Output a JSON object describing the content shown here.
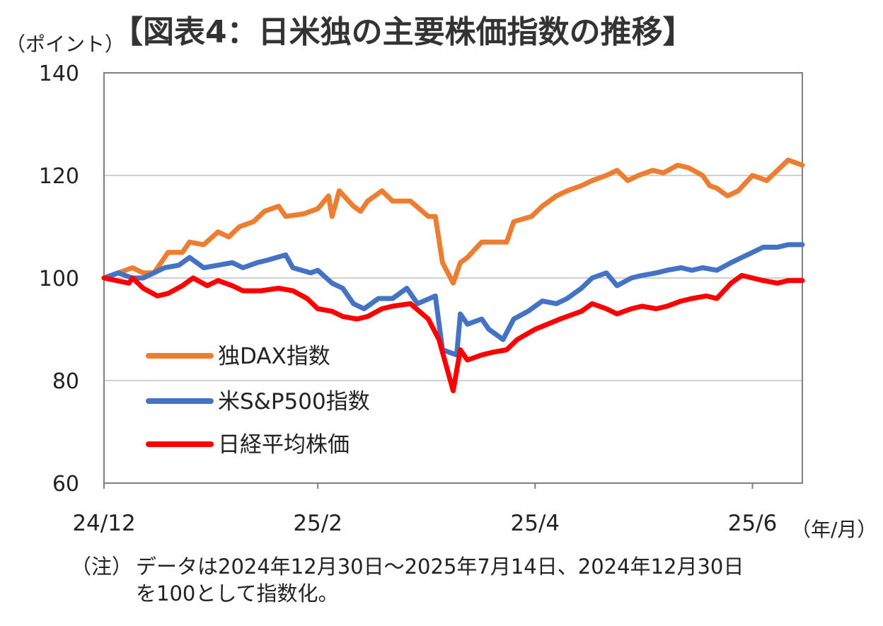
{
  "chart_data": {
    "type": "line",
    "title": "【図表4：日米独の主要株価指数の推移】",
    "ylabel": "（ポイント）",
    "xlabel": "（年/月）",
    "ylim": [
      60,
      140
    ],
    "y_ticks": [
      "140",
      "120",
      "100",
      "80",
      "60"
    ],
    "x_tick_labels": [
      "24/12",
      "25/2",
      "25/4",
      "25/6"
    ],
    "x_tick_dates": [
      "2024-12-30",
      "2025-02-28",
      "2025-04-30",
      "2025-06-30"
    ],
    "x_range": [
      "2024-12-30",
      "2025-07-14"
    ],
    "grid": true,
    "legend_position": "left",
    "series": [
      {
        "name": "独DAX指数",
        "color": "#ED7D31",
        "points": [
          [
            "2024-12-30",
            100
          ],
          [
            "2025-01-03",
            101
          ],
          [
            "2025-01-07",
            102
          ],
          [
            "2025-01-10",
            101
          ],
          [
            "2025-01-13",
            101
          ],
          [
            "2025-01-15",
            103
          ],
          [
            "2025-01-17",
            105
          ],
          [
            "2025-01-21",
            105
          ],
          [
            "2025-01-23",
            107
          ],
          [
            "2025-01-27",
            106.5
          ],
          [
            "2025-01-31",
            109
          ],
          [
            "2025-02-03",
            108
          ],
          [
            "2025-02-06",
            110
          ],
          [
            "2025-02-10",
            111
          ],
          [
            "2025-02-13",
            113
          ],
          [
            "2025-02-17",
            114
          ],
          [
            "2025-02-19",
            112
          ],
          [
            "2025-02-24",
            112.5
          ],
          [
            "2025-02-28",
            113.5
          ],
          [
            "2025-03-03",
            116
          ],
          [
            "2025-03-04",
            112
          ],
          [
            "2025-03-06",
            117
          ],
          [
            "2025-03-10",
            114
          ],
          [
            "2025-03-12",
            113
          ],
          [
            "2025-03-14",
            115
          ],
          [
            "2025-03-18",
            117
          ],
          [
            "2025-03-21",
            115
          ],
          [
            "2025-03-26",
            115
          ],
          [
            "2025-03-31",
            112
          ],
          [
            "2025-04-02",
            112
          ],
          [
            "2025-04-04",
            103
          ],
          [
            "2025-04-07",
            99
          ],
          [
            "2025-04-09",
            103
          ],
          [
            "2025-04-11",
            104
          ],
          [
            "2025-04-15",
            107
          ],
          [
            "2025-04-18",
            107
          ],
          [
            "2025-04-22",
            107
          ],
          [
            "2025-04-24",
            111
          ],
          [
            "2025-04-29",
            112
          ],
          [
            "2025-05-02",
            114
          ],
          [
            "2025-05-06",
            116
          ],
          [
            "2025-05-09",
            117
          ],
          [
            "2025-05-13",
            118
          ],
          [
            "2025-05-16",
            119
          ],
          [
            "2025-05-20",
            120
          ],
          [
            "2025-05-23",
            121
          ],
          [
            "2025-05-26",
            119
          ],
          [
            "2025-05-29",
            120
          ],
          [
            "2025-06-02",
            121
          ],
          [
            "2025-06-05",
            120.5
          ],
          [
            "2025-06-09",
            122
          ],
          [
            "2025-06-12",
            121.5
          ],
          [
            "2025-06-16",
            120
          ],
          [
            "2025-06-18",
            118
          ],
          [
            "2025-06-20",
            117.5
          ],
          [
            "2025-06-23",
            116
          ],
          [
            "2025-06-26",
            117
          ],
          [
            "2025-06-30",
            120
          ],
          [
            "2025-07-02",
            119.5
          ],
          [
            "2025-07-04",
            119
          ],
          [
            "2025-07-07",
            121
          ],
          [
            "2025-07-10",
            123
          ],
          [
            "2025-07-14",
            122
          ]
        ]
      },
      {
        "name": "米S&P500指数",
        "color": "#4472C4",
        "points": [
          [
            "2024-12-30",
            100
          ],
          [
            "2025-01-03",
            101
          ],
          [
            "2025-01-07",
            100
          ],
          [
            "2025-01-10",
            100
          ],
          [
            "2025-01-13",
            101
          ],
          [
            "2025-01-16",
            102
          ],
          [
            "2025-01-20",
            102.5
          ],
          [
            "2025-01-23",
            104
          ],
          [
            "2025-01-27",
            102
          ],
          [
            "2025-01-31",
            102.5
          ],
          [
            "2025-02-04",
            103
          ],
          [
            "2025-02-07",
            102
          ],
          [
            "2025-02-11",
            103
          ],
          [
            "2025-02-14",
            103.5
          ],
          [
            "2025-02-19",
            104.5
          ],
          [
            "2025-02-21",
            102
          ],
          [
            "2025-02-26",
            101
          ],
          [
            "2025-02-28",
            101.5
          ],
          [
            "2025-03-04",
            99
          ],
          [
            "2025-03-07",
            98
          ],
          [
            "2025-03-10",
            95
          ],
          [
            "2025-03-13",
            94
          ],
          [
            "2025-03-17",
            96
          ],
          [
            "2025-03-21",
            96
          ],
          [
            "2025-03-25",
            98
          ],
          [
            "2025-03-28",
            95
          ],
          [
            "2025-04-02",
            96.5
          ],
          [
            "2025-04-04",
            86
          ],
          [
            "2025-04-08",
            85
          ],
          [
            "2025-04-09",
            93
          ],
          [
            "2025-04-11",
            91
          ],
          [
            "2025-04-15",
            92
          ],
          [
            "2025-04-17",
            90
          ],
          [
            "2025-04-21",
            88
          ],
          [
            "2025-04-24",
            92
          ],
          [
            "2025-04-28",
            93.5
          ],
          [
            "2025-05-02",
            95.5
          ],
          [
            "2025-05-06",
            95
          ],
          [
            "2025-05-09",
            96
          ],
          [
            "2025-05-13",
            98
          ],
          [
            "2025-05-16",
            100
          ],
          [
            "2025-05-20",
            101
          ],
          [
            "2025-05-23",
            98.5
          ],
          [
            "2025-05-27",
            100
          ],
          [
            "2025-05-30",
            100.5
          ],
          [
            "2025-06-03",
            101
          ],
          [
            "2025-06-06",
            101.5
          ],
          [
            "2025-06-10",
            102
          ],
          [
            "2025-06-13",
            101.5
          ],
          [
            "2025-06-16",
            102
          ],
          [
            "2025-06-20",
            101.5
          ],
          [
            "2025-06-24",
            103
          ],
          [
            "2025-06-27",
            104
          ],
          [
            "2025-06-30",
            105
          ],
          [
            "2025-07-03",
            106
          ],
          [
            "2025-07-07",
            106
          ],
          [
            "2025-07-10",
            106.5
          ],
          [
            "2025-07-14",
            106.5
          ]
        ]
      },
      {
        "name": "日経平均株価",
        "color": "#FF0000",
        "points": [
          [
            "2024-12-30",
            100
          ],
          [
            "2025-01-06",
            99
          ],
          [
            "2025-01-07",
            100
          ],
          [
            "2025-01-10",
            98
          ],
          [
            "2025-01-14",
            96.5
          ],
          [
            "2025-01-17",
            97
          ],
          [
            "2025-01-21",
            98.5
          ],
          [
            "2025-01-24",
            100
          ],
          [
            "2025-01-28",
            98.5
          ],
          [
            "2025-01-31",
            99.5
          ],
          [
            "2025-02-04",
            98.5
          ],
          [
            "2025-02-07",
            97.5
          ],
          [
            "2025-02-12",
            97.5
          ],
          [
            "2025-02-17",
            98
          ],
          [
            "2025-02-21",
            97.5
          ],
          [
            "2025-02-25",
            96
          ],
          [
            "2025-02-28",
            94
          ],
          [
            "2025-03-04",
            93.5
          ],
          [
            "2025-03-07",
            92.5
          ],
          [
            "2025-03-11",
            92
          ],
          [
            "2025-03-14",
            92.5
          ],
          [
            "2025-03-18",
            94
          ],
          [
            "2025-03-21",
            94.5
          ],
          [
            "2025-03-26",
            95
          ],
          [
            "2025-03-31",
            92
          ],
          [
            "2025-04-03",
            88
          ],
          [
            "2025-04-07",
            78
          ],
          [
            "2025-04-09",
            86
          ],
          [
            "2025-04-11",
            84
          ],
          [
            "2025-04-15",
            85
          ],
          [
            "2025-04-18",
            85.5
          ],
          [
            "2025-04-22",
            86
          ],
          [
            "2025-04-25",
            88
          ],
          [
            "2025-04-30",
            90
          ],
          [
            "2025-05-07",
            92
          ],
          [
            "2025-05-13",
            93.5
          ],
          [
            "2025-05-16",
            95
          ],
          [
            "2025-05-20",
            94
          ],
          [
            "2025-05-23",
            93
          ],
          [
            "2025-05-27",
            94
          ],
          [
            "2025-05-30",
            94.5
          ],
          [
            "2025-06-03",
            94
          ],
          [
            "2025-06-06",
            94.5
          ],
          [
            "2025-06-10",
            95.5
          ],
          [
            "2025-06-13",
            96
          ],
          [
            "2025-06-17",
            96.5
          ],
          [
            "2025-06-20",
            96
          ],
          [
            "2025-06-24",
            99
          ],
          [
            "2025-06-27",
            100.5
          ],
          [
            "2025-06-30",
            100
          ],
          [
            "2025-07-03",
            99.5
          ],
          [
            "2025-07-07",
            99
          ],
          [
            "2025-07-10",
            99.5
          ],
          [
            "2025-07-14",
            99.5
          ]
        ]
      }
    ]
  },
  "note": {
    "prefix": "（注）",
    "line1": "データは2024年12月30日～2025年7月14日、2024年12月30日",
    "line2": "を100として指数化。"
  }
}
